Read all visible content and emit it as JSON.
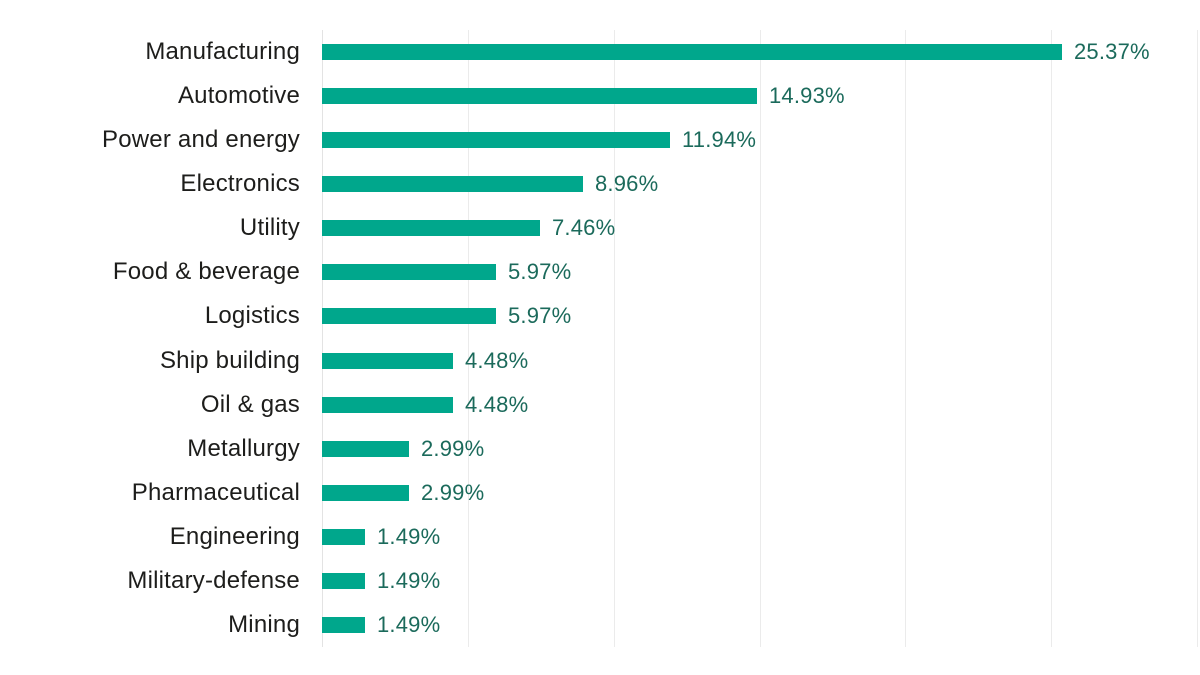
{
  "chart_data": {
    "type": "bar",
    "orientation": "horizontal",
    "title": "",
    "xlabel": "",
    "ylabel": "",
    "categories": [
      "Manufacturing",
      "Automotive",
      "Power and energy",
      "Electronics",
      "Utility",
      "Food & beverage",
      "Logistics",
      "Ship building",
      "Oil & gas",
      "Metallurgy",
      "Pharmaceutical",
      "Engineering",
      "Military-defense",
      "Mining"
    ],
    "values": [
      25.37,
      14.93,
      11.94,
      8.96,
      7.46,
      5.97,
      5.97,
      4.48,
      4.48,
      2.99,
      2.99,
      1.49,
      1.49,
      1.49
    ],
    "value_labels": [
      "25.37%",
      "14.93%",
      "11.94%",
      "8.96%",
      "7.46%",
      "5.97%",
      "5.97%",
      "4.48%",
      "4.48%",
      "2.99%",
      "2.99%",
      "1.49%",
      "1.49%",
      "1.49%"
    ],
    "xlim": [
      0,
      30
    ],
    "gridline_step": 5,
    "grid": true,
    "legend": false,
    "data_labels": true,
    "colors": {
      "bar": "#00a78c",
      "value_label": "#1b6a5b",
      "category_label": "#1d1d1b",
      "gridline": "#ebebeb",
      "axis_line": "#e3e3e3",
      "background": "#ffffff"
    }
  }
}
